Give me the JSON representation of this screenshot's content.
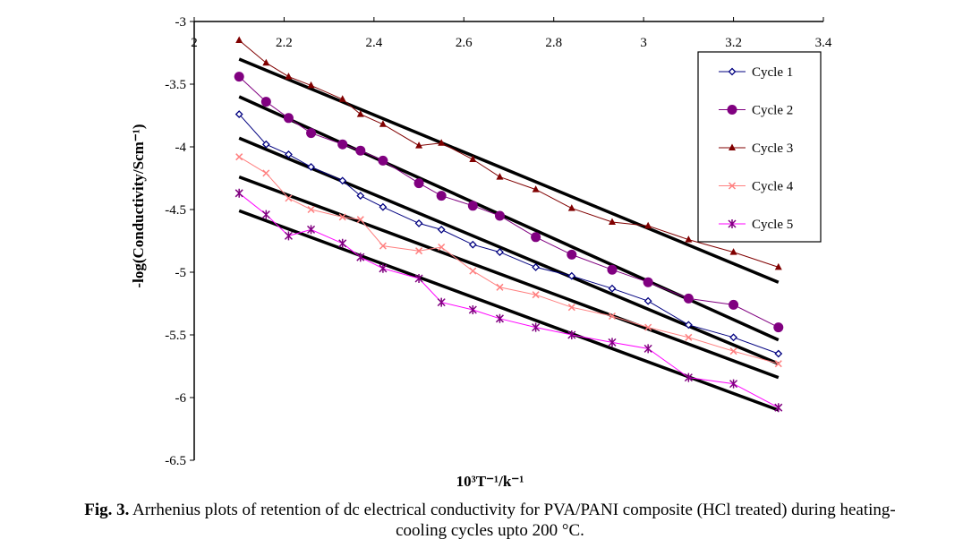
{
  "chart_data": {
    "type": "line",
    "title": "",
    "xlabel": "10³T⁻¹/k⁻¹",
    "ylabel": "-log(Conductivity/Scm⁻¹)",
    "xlim": [
      2,
      3.4
    ],
    "ylim": [
      -6.5,
      -3
    ],
    "xticks": [
      "2",
      "2.2",
      "2.4",
      "2.6",
      "2.8",
      "3",
      "3.2",
      "3.4"
    ],
    "yticks": [
      "-3",
      "-3.5",
      "-4",
      "-4.5",
      "-5",
      "-5.5",
      "-6",
      "-6.5"
    ],
    "grid": false,
    "legend_position": "top-right",
    "x": [
      2.1,
      2.16,
      2.21,
      2.26,
      2.33,
      2.37,
      2.42,
      2.5,
      2.55,
      2.62,
      2.68,
      2.76,
      2.84,
      2.93,
      3.01,
      3.1,
      3.2,
      3.3
    ],
    "series": [
      {
        "name": "Cycle 1",
        "color": "#000080",
        "marker": "diamond",
        "values": [
          -3.74,
          -3.98,
          -4.06,
          -4.16,
          -4.27,
          -4.39,
          -4.48,
          -4.61,
          -4.66,
          -4.78,
          -4.84,
          -4.96,
          -5.03,
          -5.13,
          -5.23,
          -5.42,
          -5.52,
          -5.65
        ]
      },
      {
        "name": "Cycle 2",
        "color": "#800080",
        "marker": "circle",
        "values": [
          -3.44,
          -3.64,
          -3.77,
          -3.89,
          -3.98,
          -4.03,
          -4.11,
          -4.29,
          -4.39,
          -4.47,
          -4.55,
          -4.72,
          -4.86,
          -4.98,
          -5.08,
          -5.21,
          -5.26,
          -5.44
        ]
      },
      {
        "name": "Cycle 3",
        "color": "#800000",
        "marker": "triangle",
        "values": [
          -3.15,
          -3.33,
          -3.44,
          -3.51,
          -3.62,
          -3.74,
          -3.82,
          -3.99,
          -3.97,
          -4.1,
          -4.24,
          -4.34,
          -4.49,
          -4.6,
          -4.63,
          -4.74,
          -4.84,
          -4.96
        ]
      },
      {
        "name": "Cycle 4",
        "color": "#FF8080",
        "marker": "x",
        "values": [
          -4.08,
          -4.21,
          -4.41,
          -4.5,
          -4.56,
          -4.58,
          -4.79,
          -4.83,
          -4.8,
          -4.99,
          -5.12,
          -5.18,
          -5.28,
          -5.35,
          -5.44,
          -5.52,
          -5.63,
          -5.73
        ]
      },
      {
        "name": "Cycle 5",
        "color": "#FF00FF",
        "marker_color": "#800080",
        "marker": "star",
        "values": [
          -4.37,
          -4.54,
          -4.71,
          -4.66,
          -4.77,
          -4.88,
          -4.97,
          -5.05,
          -5.24,
          -5.3,
          -5.37,
          -5.44,
          -5.5,
          -5.56,
          -5.61,
          -5.84,
          -5.89,
          -6.08
        ]
      }
    ],
    "fit_lines": [
      {
        "x": [
          2.1,
          3.3
        ],
        "y": [
          -3.3,
          -5.08
        ]
      },
      {
        "x": [
          2.1,
          3.3
        ],
        "y": [
          -3.6,
          -5.54
        ]
      },
      {
        "x": [
          2.1,
          3.3
        ],
        "y": [
          -3.93,
          -5.73
        ]
      },
      {
        "x": [
          2.1,
          3.3
        ],
        "y": [
          -4.24,
          -5.84
        ]
      },
      {
        "x": [
          2.1,
          3.3
        ],
        "y": [
          -4.51,
          -6.1
        ]
      }
    ]
  },
  "caption": {
    "label": "Fig. 3.",
    "line1": " Arrhenius plots of retention of dc electrical conductivity for PVA/PANI composite (HCl treated) during heating-",
    "line2": "cooling cycles upto 200 °C."
  }
}
